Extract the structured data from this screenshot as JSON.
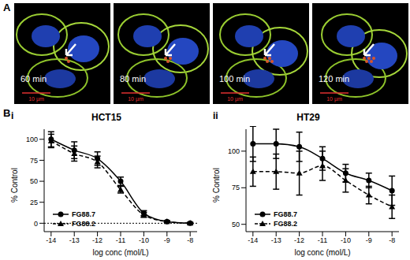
{
  "panel_a": {
    "label": "A",
    "frames": [
      {
        "time": "60 min",
        "scale_bar": "10 µm"
      },
      {
        "time": "80 min",
        "scale_bar": "10 µm"
      },
      {
        "time": "100 min",
        "scale_bar": "10 µm"
      },
      {
        "time": "120 min",
        "scale_bar": "10 µm"
      }
    ]
  },
  "panel_b": {
    "label": "B"
  },
  "chart_data": [
    {
      "type": "line",
      "panel": "i",
      "title": "HCT15",
      "x_label": "log conc (mol/L)",
      "y_label": "% Control",
      "x": [
        -14,
        -13,
        -12,
        -11,
        -10,
        -9,
        -8
      ],
      "xlim": [
        -14.3,
        -7.7
      ],
      "xticks": [
        -14,
        -13,
        -12,
        -11,
        -10,
        -9,
        -8
      ],
      "ylim": [
        -10,
        112
      ],
      "yticks": [
        0,
        25,
        50,
        75,
        100
      ],
      "ref_line": 0,
      "legend": "lower left",
      "series": [
        {
          "name": "FG88.7",
          "color": "#000000",
          "marker": "circle",
          "line_style": "solid",
          "values": [
            100,
            87,
            77,
            50,
            12,
            2,
            0
          ],
          "errors": [
            9,
            10,
            8,
            5,
            3,
            1,
            1
          ]
        },
        {
          "name": "FG88.2",
          "color": "#000000",
          "marker": "triangle",
          "line_style": "dashed",
          "values": [
            98,
            83,
            73,
            40,
            10,
            2,
            0
          ],
          "errors": [
            8,
            9,
            7,
            4,
            3,
            1,
            1
          ]
        }
      ]
    },
    {
      "type": "line",
      "panel": "ii",
      "title": "HT29",
      "x_label": "log conc (mol/L)",
      "y_label": "% Control",
      "x": [
        -14,
        -13,
        -12,
        -11,
        -10,
        -9,
        -8
      ],
      "xlim": [
        -14.3,
        -7.7
      ],
      "xticks": [
        -14,
        -13,
        -12,
        -11,
        -10,
        -9,
        -8
      ],
      "ylim": [
        45,
        115
      ],
      "yticks": [
        50,
        75,
        100
      ],
      "legend": "lower left",
      "series": [
        {
          "name": "FG88.7",
          "color": "#000000",
          "marker": "circle",
          "line_style": "solid",
          "values": [
            105,
            105,
            103,
            95,
            85,
            80,
            73
          ],
          "errors": [
            12,
            10,
            10,
            8,
            6,
            5,
            10
          ]
        },
        {
          "name": "FG88.2",
          "color": "#000000",
          "marker": "triangle",
          "line_style": "dashed",
          "values": [
            86,
            86,
            85,
            90,
            80,
            70,
            62
          ],
          "errors": [
            10,
            12,
            15,
            10,
            8,
            6,
            8
          ]
        }
      ]
    }
  ]
}
